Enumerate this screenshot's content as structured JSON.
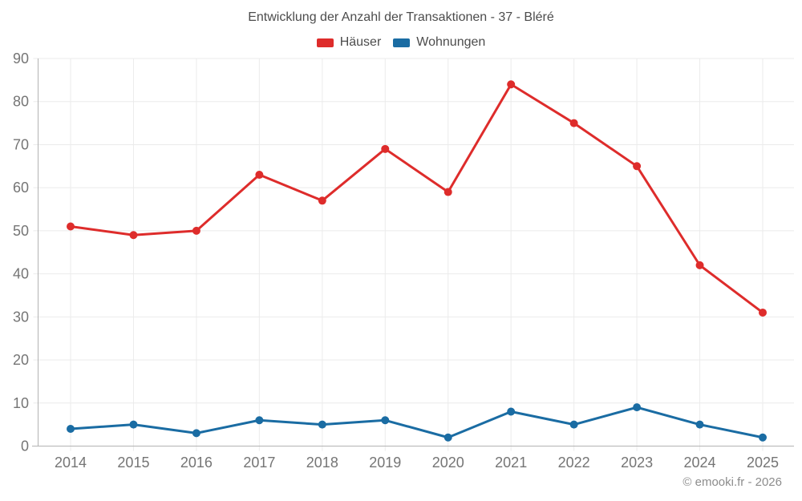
{
  "title": "Entwicklung der Anzahl der Transaktionen - 37 - Bléré",
  "footer": "© emooki.fr - 2026",
  "colors": {
    "grid": "#ebebeb",
    "axis": "#b3b3b3",
    "tick_label": "#757575",
    "title_text": "#4c4c4c",
    "footer_text": "#8c8c8c",
    "background": "#ffffff"
  },
  "chart_data": {
    "type": "line",
    "title": "Entwicklung der Anzahl der Transaktionen - 37 - Bléré",
    "categories": [
      "2014",
      "2015",
      "2016",
      "2017",
      "2018",
      "2019",
      "2020",
      "2021",
      "2022",
      "2023",
      "2024",
      "2025"
    ],
    "series": [
      {
        "name": "Häuser",
        "color": "#de2c2b",
        "values": [
          51,
          49,
          50,
          63,
          57,
          69,
          59,
          84,
          75,
          65,
          42,
          31
        ]
      },
      {
        "name": "Wohnungen",
        "color": "#1a6ca3",
        "values": [
          4,
          5,
          3,
          6,
          5,
          6,
          2,
          8,
          5,
          9,
          5,
          2
        ]
      }
    ],
    "xlabel": "",
    "ylabel": "",
    "ylim": [
      0,
      90
    ],
    "yticks": [
      0,
      10,
      20,
      30,
      40,
      50,
      60,
      70,
      80,
      90
    ],
    "grid": true,
    "legend_position": "top",
    "marker": "circle"
  }
}
